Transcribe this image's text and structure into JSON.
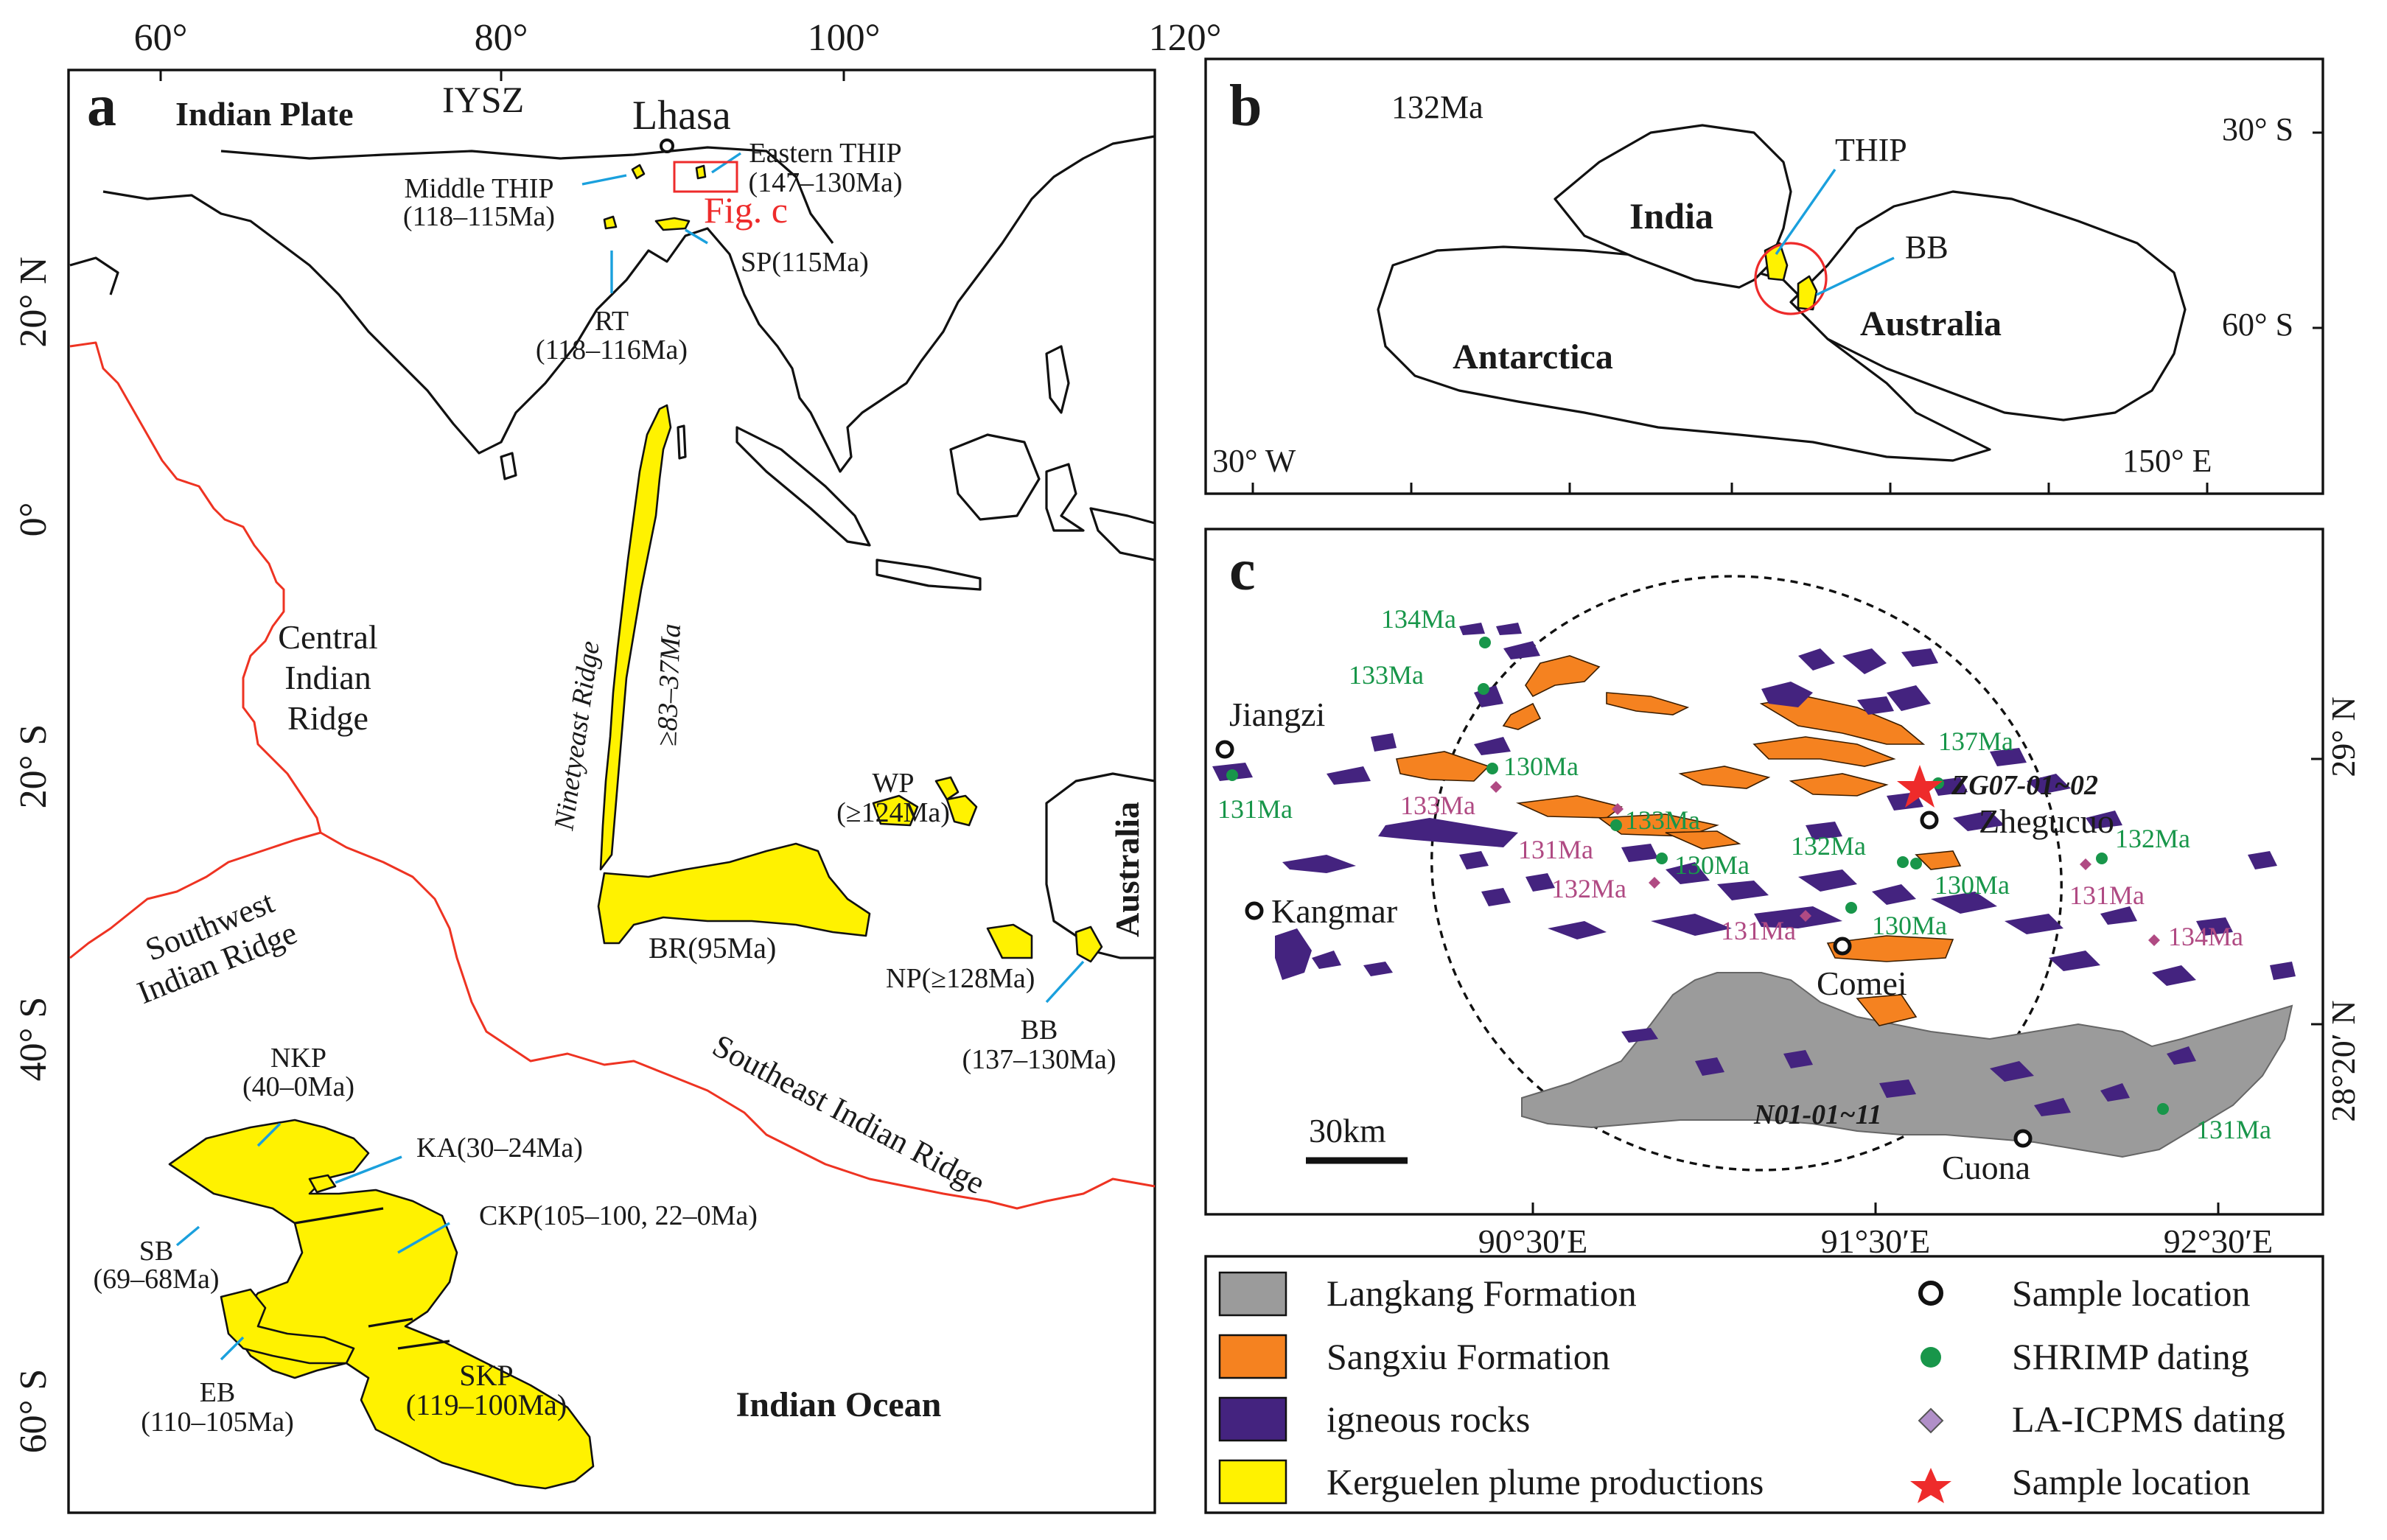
{
  "colors": {
    "plume": "#fff200",
    "ridge": "#ee3322",
    "arrow": "#1aa0dd",
    "igneous": "#44237f",
    "sangxiu": "#f58220",
    "langkang": "#9b9b9b",
    "shrimp": "#18964a",
    "laicpms": "#b04a83",
    "star": "#ee2b2b"
  },
  "panel_a": {
    "letter": "a",
    "lon_ticks": [
      "60°",
      "80°",
      "100°",
      "120°"
    ],
    "lat_ticks": [
      "20° N",
      "0°",
      "20° S",
      "40° S",
      "60° S"
    ],
    "labels": {
      "indian_plate": "Indian Plate",
      "iysz": "IYSZ",
      "lhasa": "Lhasa",
      "eastern_thip": "Eastern THIP",
      "eastern_thip_age": "(147–130Ma)",
      "middle_thip": "Middle THIP",
      "middle_thip_age": "(118–115Ma)",
      "fig_c": "Fig. c",
      "sp": "SP(115Ma)",
      "rt": "RT",
      "rt_age": "(118–116Ma)",
      "central_1": "Central",
      "central_2": "Indian",
      "central_3": "Ridge",
      "ninetyeast": "Ninetyeast Ridge",
      "ninetyeast_age": "≥83–37Ma",
      "wp": "WP",
      "wp_age": "(≥124Ma)",
      "australia": "Australia",
      "br": "BR(95Ma)",
      "np": "NP(≥128Ma)",
      "bb": "BB",
      "bb_age": "(137–130Ma)",
      "southwest_1": "Southwest",
      "southwest_2": "Indian Ridge",
      "southeast": "Southeast Indian Ridge",
      "nkp": "NKP",
      "nkp_age": "(40–0Ma)",
      "ka": "KA(30–24Ma)",
      "ckp": "CKP(105–100, 22–0Ma)",
      "sb": "SB",
      "sb_age": "(69–68Ma)",
      "eb": "EB",
      "eb_age": "(110–105Ma)",
      "skp": "SKP",
      "skp_age": "(119–100Ma)",
      "indian_ocean": "Indian Ocean"
    }
  },
  "panel_b": {
    "letter": "b",
    "age": "132Ma",
    "lat_30": "30° S",
    "lat_60": "60° S",
    "lon_w": "30° W",
    "lon_e": "150° E",
    "india": "India",
    "antarctica": "Antarctica",
    "australia": "Australia",
    "thip": "THIP",
    "bb": "BB"
  },
  "panel_c": {
    "letter": "c",
    "places": {
      "jiangzi": "Jiangzi",
      "kangmar": "Kangmar",
      "zhegucuo": "Zhegucuo",
      "comei": "Comei",
      "cuona": "Cuona"
    },
    "sample_zg": "ZG07-01~02",
    "sample_n": "N01-01~11",
    "scale": "30km",
    "lon_ticks": [
      "90°30′E",
      "91°30′E",
      "92°30′E"
    ],
    "lat_29": "29° N",
    "lat_2820": "28°20′ N",
    "shrimp_ages": {
      "a134": "134Ma",
      "a133a": "133Ma",
      "a130a": "130Ma",
      "a131a": "131Ma",
      "a133b": "133Ma",
      "a130b": "130Ma",
      "a132a": "132Ma",
      "a130c": "130Ma",
      "a130d": "130Ma",
      "a137": "137Ma",
      "a132b": "132Ma",
      "a131b": "131Ma"
    },
    "la_ages": {
      "a133": "133Ma",
      "a131a": "131Ma",
      "a132": "132Ma",
      "a131b": "131Ma",
      "a131c": "131Ma",
      "a134": "134Ma"
    }
  },
  "legend": {
    "langkang": "Langkang Formation",
    "sangxiu": "Sangxiu Formation",
    "igneous": "igneous rocks",
    "kerguelen": "Kerguelen plume productions",
    "sample_loc": "Sample location",
    "shrimp": "SHRIMP dating",
    "laicpms": "LA-ICPMS dating",
    "sample_loc2": "Sample location"
  }
}
